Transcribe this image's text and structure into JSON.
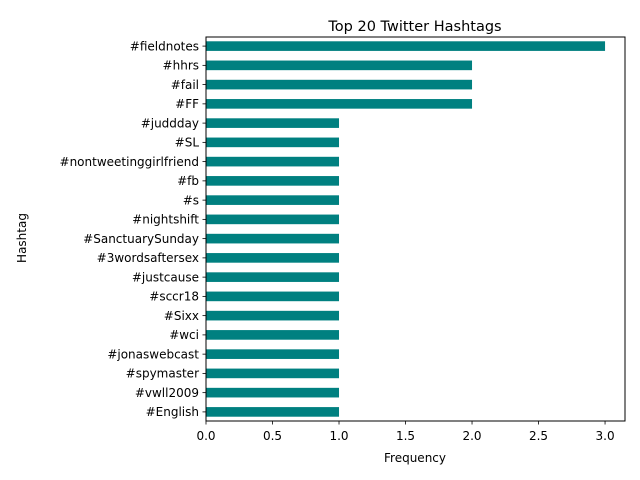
{
  "chart_data": {
    "type": "bar",
    "orientation": "horizontal",
    "title": "Top 20 Twitter Hashtags",
    "xlabel": "Frequency",
    "ylabel": "Hashtag",
    "categories": [
      "#fieldnotes",
      "#hhrs",
      "#fail",
      "#FF",
      "#juddday",
      "#SL",
      "#nontweetinggirlfriend",
      "#fb",
      "#s",
      "#nightshift",
      "#SanctuarySunday",
      "#3wordsaftersex",
      "#justcause",
      "#sccr18",
      "#Sixx",
      "#wci",
      "#jonaswebcast",
      "#spymaster",
      "#vwll2009",
      "#English"
    ],
    "values": [
      3,
      2,
      2,
      2,
      1,
      1,
      1,
      1,
      1,
      1,
      1,
      1,
      1,
      1,
      1,
      1,
      1,
      1,
      1,
      1
    ],
    "xlim": [
      0,
      3.15
    ],
    "xticks": [
      "0.0",
      "0.5",
      "1.0",
      "1.5",
      "2.0",
      "2.5",
      "3.0"
    ],
    "grid": false,
    "bar_color": "#008080"
  }
}
